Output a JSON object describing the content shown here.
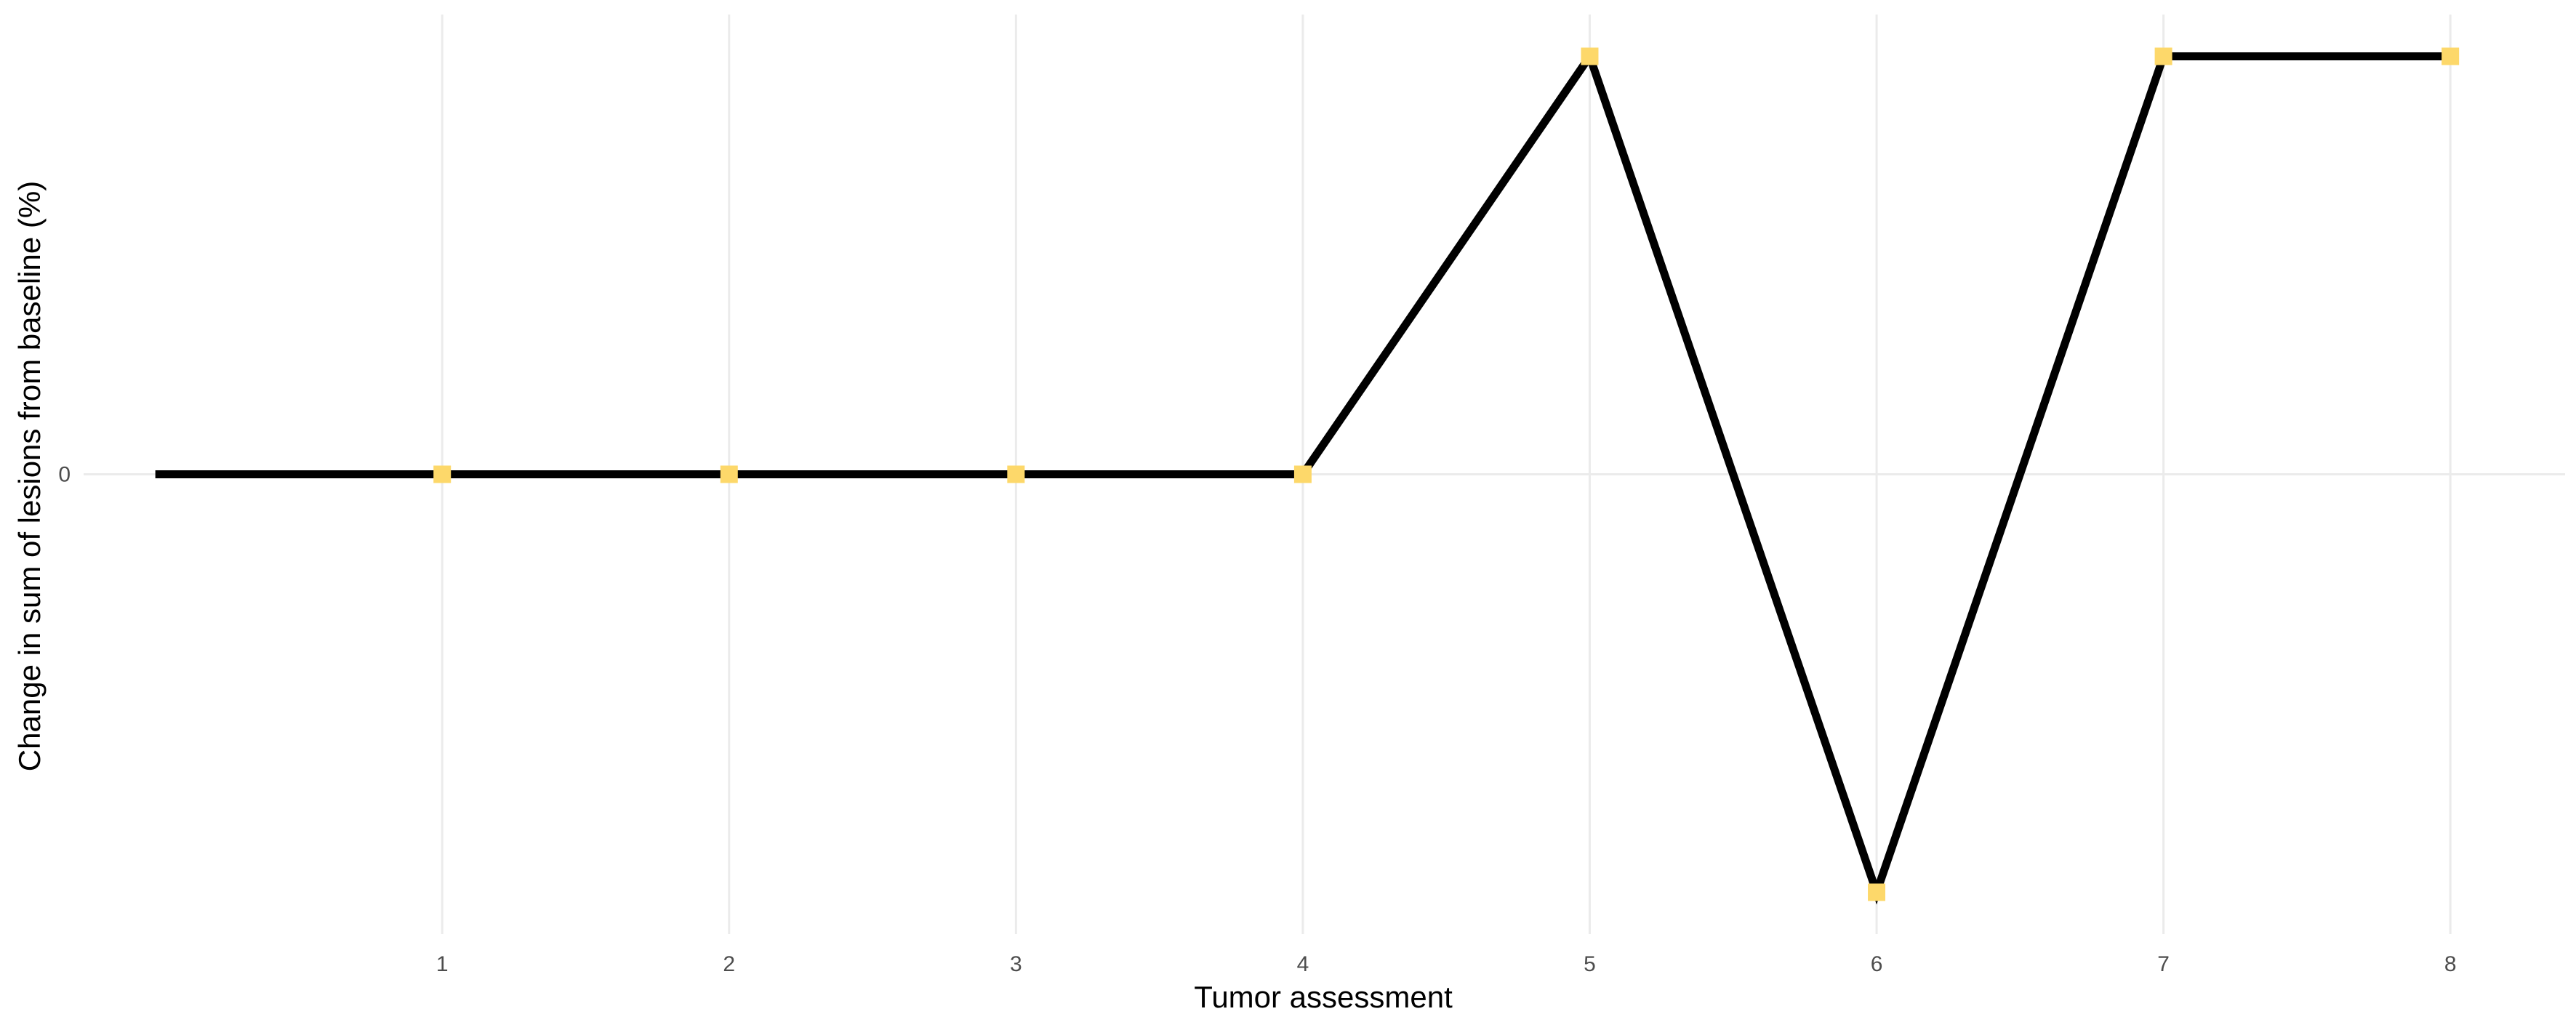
{
  "chart_data": {
    "type": "line",
    "title": "",
    "xlabel": "Tumor assessment",
    "ylabel": "Change in sum of lesions from baseline (%)",
    "x_ticks": [
      "1",
      "2",
      "3",
      "4",
      "5",
      "6",
      "7",
      "8"
    ],
    "y_ticks": [
      "0"
    ],
    "x": [
      0,
      1,
      2,
      3,
      4,
      5,
      6,
      7,
      8
    ],
    "y": [
      0,
      0,
      0,
      0,
      0,
      1,
      -1,
      1,
      1
    ],
    "markers_at_x": [
      1,
      2,
      3,
      4,
      5,
      6,
      7,
      8
    ],
    "xlim": [
      -0.25,
      8.4
    ],
    "ylim": [
      -1.1,
      1.1
    ],
    "grid": true,
    "colors": {
      "line": "#000000",
      "marker": "#FDD86A",
      "grid": "#EBEBEB",
      "background": "#FFFFFF"
    }
  }
}
